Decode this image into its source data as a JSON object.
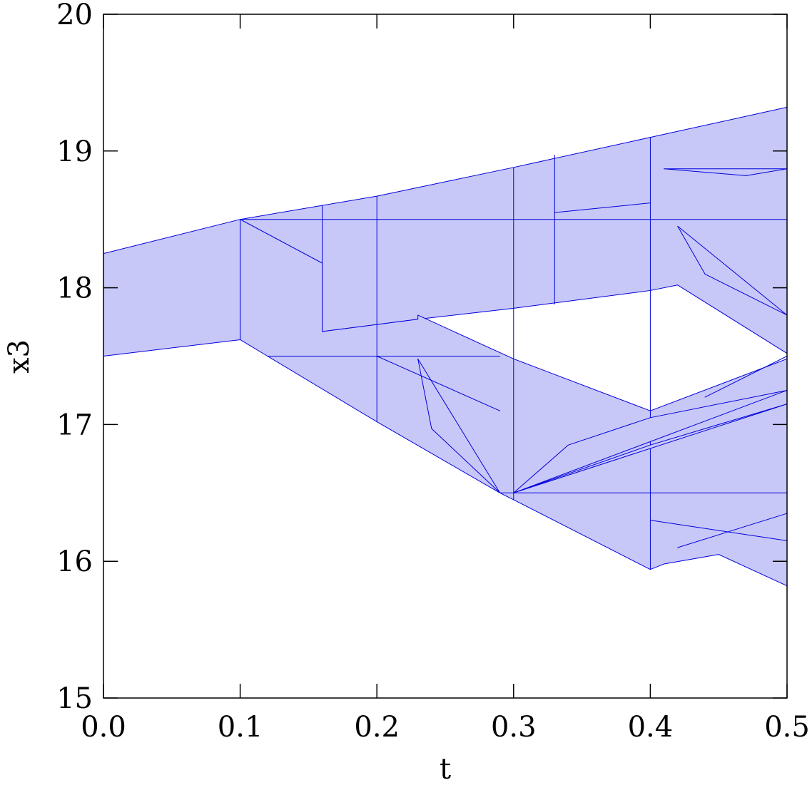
{
  "chart_data": {
    "type": "polygon",
    "xlabel": "t",
    "ylabel": "x3",
    "xlim": [
      0,
      0.5
    ],
    "ylim": [
      15,
      20
    ],
    "xticks": [
      {
        "value": 0,
        "label": "0.0"
      },
      0.1,
      0.2,
      0.3,
      0.4,
      0.5
    ],
    "yticks": [
      15,
      16,
      17,
      18,
      19,
      20
    ],
    "color": "#0000dd",
    "fill": "#c8c8f8",
    "polygons": [
      {
        "x": [
          0,
          0.1,
          0.1,
          0
        ],
        "y": [
          18.25,
          18.5,
          17.62,
          17.5
        ]
      },
      {
        "x": [
          0.1,
          0.2,
          0.3,
          0.4,
          0.5,
          0.5,
          0.42,
          0.4,
          0.3,
          0.23,
          0.16,
          0.16
        ],
        "y": [
          18.5,
          18.67,
          18.88,
          19.1,
          19.32,
          17.52,
          18.02,
          17.98,
          17.85,
          17.77,
          17.68,
          18.18
        ]
      },
      {
        "x": [
          0.1,
          0.16,
          0.16,
          0.23,
          0.23,
          0.3,
          0.4,
          0.5,
          0.5,
          0.45,
          0.41,
          0.4,
          0.3,
          0.29,
          0.2,
          0.12,
          0.1
        ],
        "y": [
          18.5,
          18.18,
          17.68,
          17.77,
          17.8,
          17.48,
          17.1,
          17.48,
          15.82,
          16.05,
          15.98,
          15.94,
          16.45,
          16.5,
          17.02,
          17.5,
          17.62
        ]
      },
      {
        "x": [
          0.1,
          0.5
        ],
        "y": [
          18.5,
          18.5
        ]
      },
      {
        "x": [
          0.12,
          0.29
        ],
        "y": [
          17.5,
          17.5
        ]
      },
      {
        "x": [
          0.29,
          0.5
        ],
        "y": [
          16.5,
          16.5
        ]
      },
      {
        "x": [
          0.2,
          0.2
        ],
        "y": [
          18.67,
          17.02
        ]
      },
      {
        "x": [
          0.3,
          0.3
        ],
        "y": [
          18.88,
          16.45
        ]
      },
      {
        "x": [
          0.4,
          0.4
        ],
        "y": [
          19.1,
          15.94
        ]
      },
      {
        "x": [
          0.16,
          0.16
        ],
        "y": [
          18.6,
          18.18
        ]
      },
      {
        "x": [
          0.33,
          0.33
        ],
        "y": [
          18.97,
          17.88
        ]
      },
      {
        "x": [
          0.23,
          0.24,
          0.29
        ],
        "y": [
          17.48,
          16.97,
          16.5
        ]
      },
      {
        "x": [
          0.2,
          0.29
        ],
        "y": [
          17.5,
          17.1
        ]
      },
      {
        "x": [
          0.3,
          0.34,
          0.4,
          0.5
        ],
        "y": [
          16.5,
          16.85,
          17.05,
          17.25
        ]
      },
      {
        "x": [
          0.3,
          0.4,
          0.5
        ],
        "y": [
          16.5,
          16.85,
          17.15
        ]
      },
      {
        "x": [
          0.4,
          0.5
        ],
        "y": [
          16.3,
          16.15
        ]
      },
      {
        "x": [
          0.42,
          0.5
        ],
        "y": [
          16.1,
          16.35
        ]
      },
      {
        "x": [
          0.41,
          0.47,
          0.5
        ],
        "y": [
          18.87,
          18.82,
          18.87
        ]
      },
      {
        "x": [
          0.42,
          0.44,
          0.5
        ],
        "y": [
          18.45,
          18.1,
          17.8
        ]
      },
      {
        "x": [
          0.33,
          0.4
        ],
        "y": [
          18.55,
          18.62
        ]
      },
      {
        "x": [
          0.44,
          0.5
        ],
        "y": [
          17.2,
          17.5
        ]
      }
    ]
  }
}
